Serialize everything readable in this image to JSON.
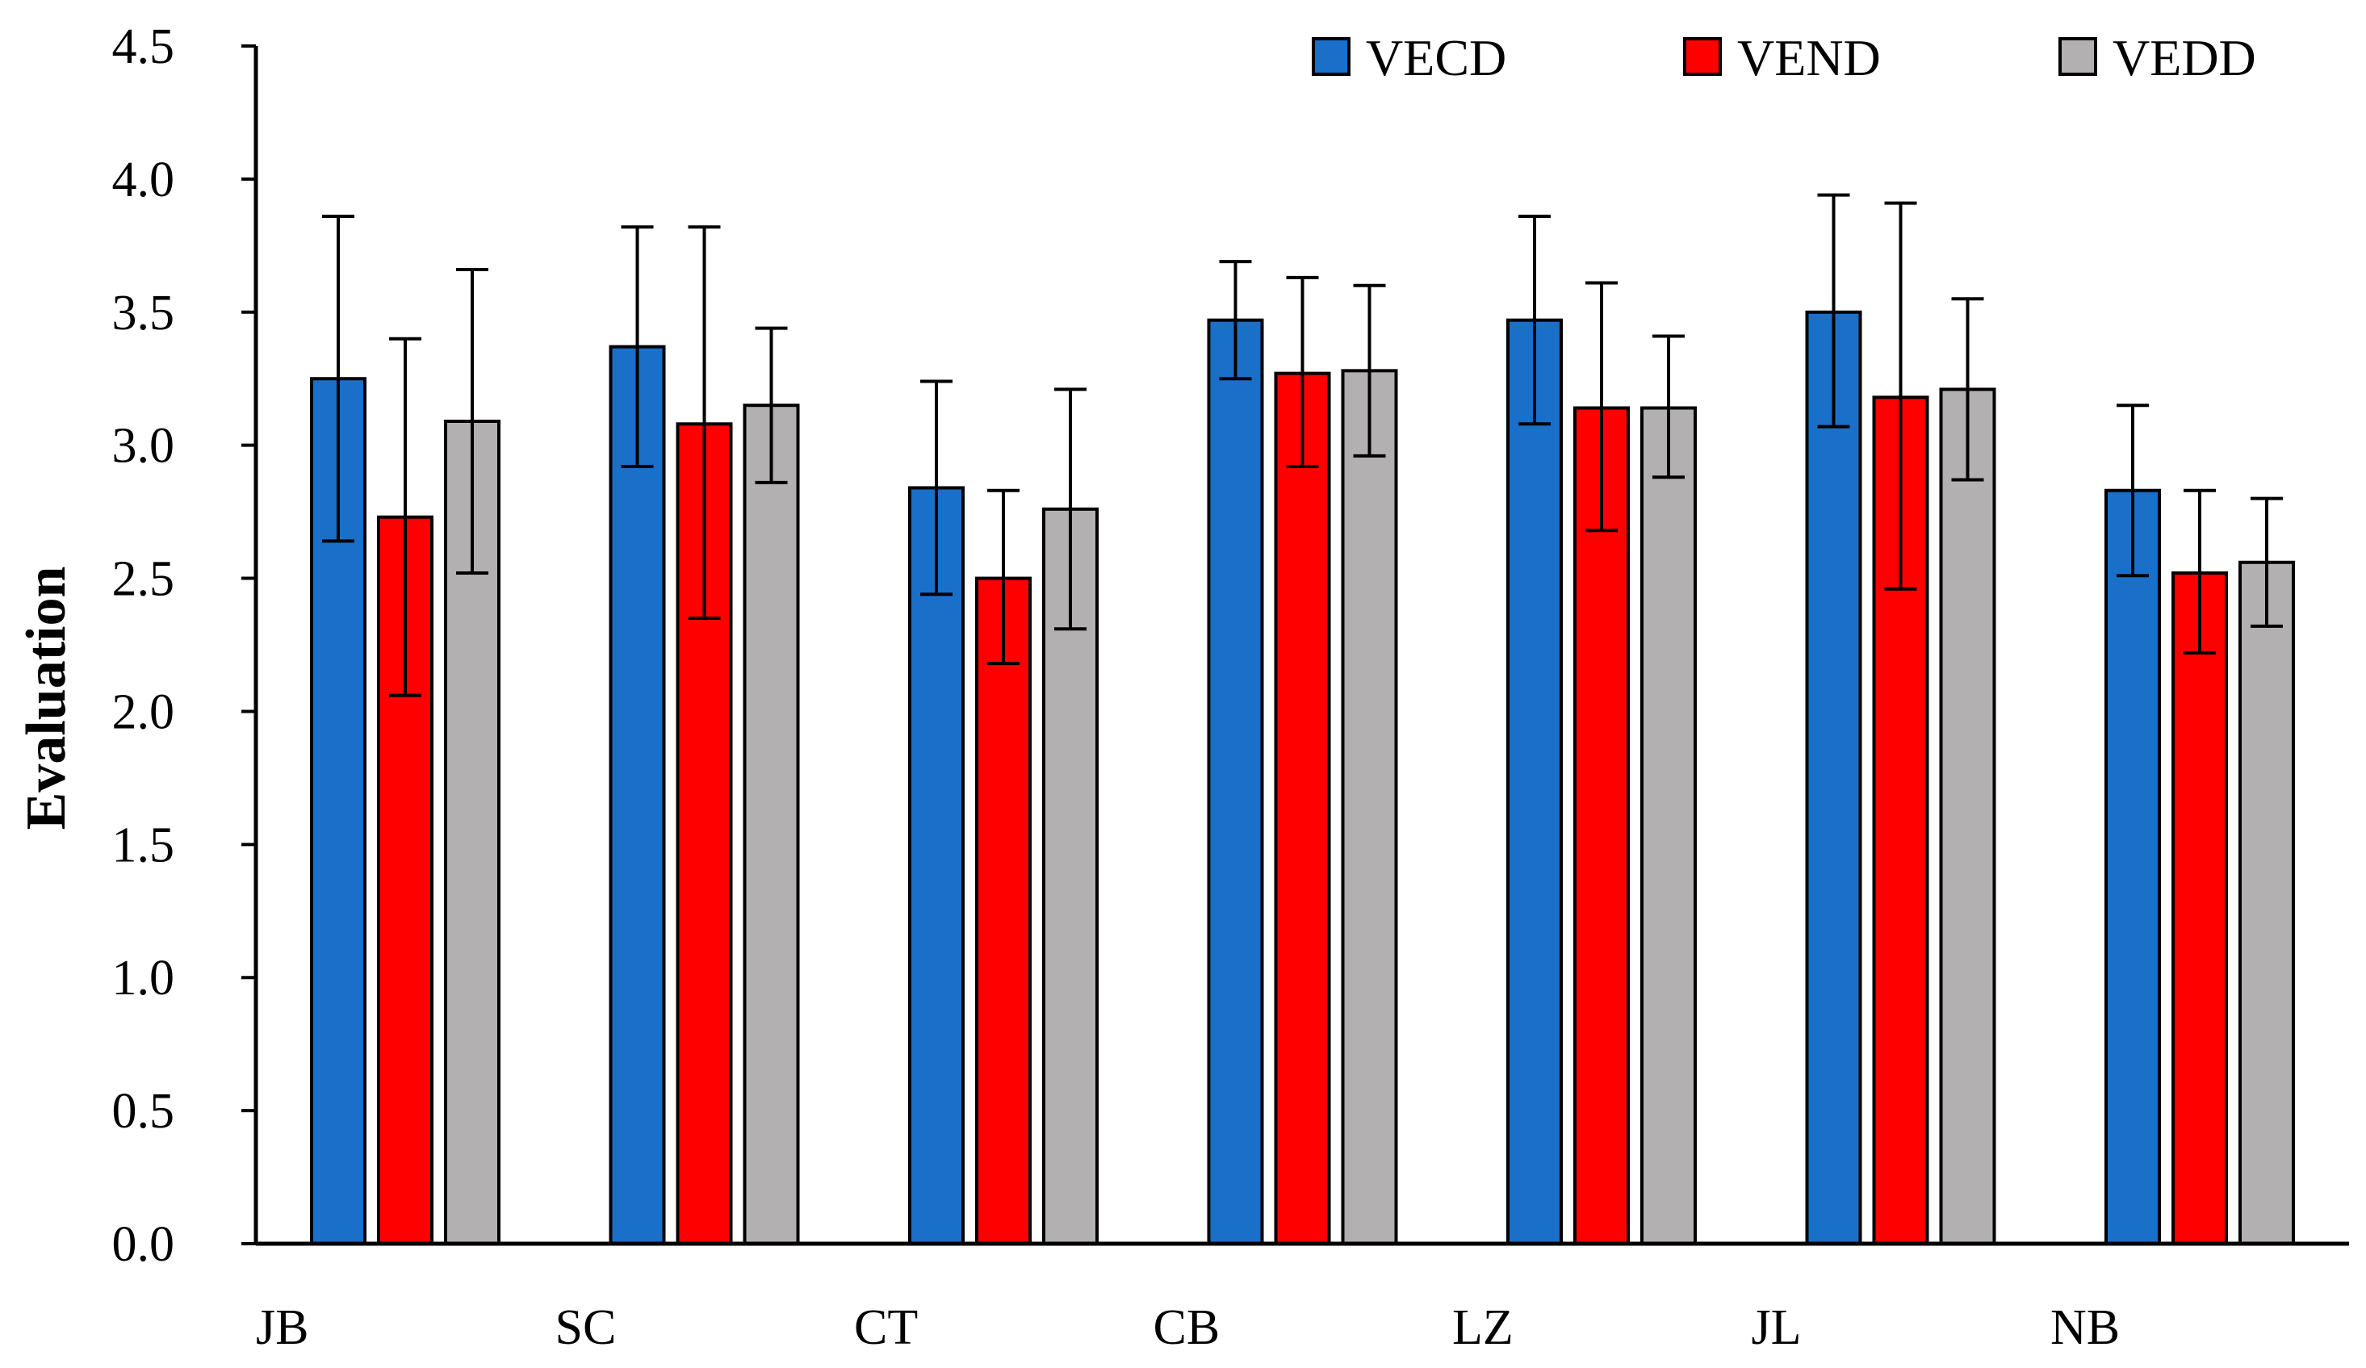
{
  "chart_data": {
    "type": "bar",
    "title": "",
    "xlabel": "",
    "ylabel": "Evaluation",
    "ylim": [
      0,
      4.5
    ],
    "yticks": [
      "0.0",
      "0.5",
      "1.0",
      "1.5",
      "2.0",
      "2.5",
      "3.0",
      "3.5",
      "4.0",
      "4.5"
    ],
    "categories": [
      "JB",
      "SC",
      "CT",
      "CB",
      "LZ",
      "JL",
      "NB"
    ],
    "grid": false,
    "legend_position": "top-right",
    "series": [
      {
        "name": "VECD",
        "color": "#1a70c8",
        "values": [
          3.25,
          3.37,
          2.84,
          3.47,
          3.47,
          3.5,
          2.83
        ],
        "err_low": [
          2.64,
          2.92,
          2.44,
          3.25,
          3.08,
          3.07,
          2.51
        ],
        "err_high": [
          3.86,
          3.82,
          3.24,
          3.69,
          3.86,
          3.94,
          3.15
        ]
      },
      {
        "name": "VEND",
        "color": "#ff0000",
        "values": [
          2.73,
          3.08,
          2.5,
          3.27,
          3.14,
          3.18,
          2.52
        ],
        "err_low": [
          2.06,
          2.35,
          2.18,
          2.92,
          2.68,
          2.46,
          2.22
        ],
        "err_high": [
          3.4,
          3.82,
          2.83,
          3.63,
          3.61,
          3.91,
          2.83
        ]
      },
      {
        "name": "VEDD",
        "color": "#b2b0b0",
        "values": [
          3.09,
          3.15,
          2.76,
          3.28,
          3.14,
          3.21,
          2.56
        ],
        "err_low": [
          2.52,
          2.86,
          2.31,
          2.96,
          2.88,
          2.87,
          2.32
        ],
        "err_high": [
          3.66,
          3.44,
          3.21,
          3.6,
          3.41,
          3.55,
          2.8
        ]
      }
    ]
  }
}
